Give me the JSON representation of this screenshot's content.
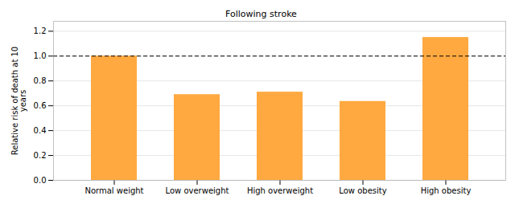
{
  "chart_data": {
    "type": "bar",
    "categories": [
      "Normal weight",
      "Low overweight",
      "High overweight",
      "Low obesity",
      "High obesity"
    ],
    "values": [
      1.0,
      0.69,
      0.71,
      0.635,
      1.15
    ],
    "color": "#FFA940",
    "ylabel": "Relative risk of death at 10\nyears",
    "annotation": "Following stroke",
    "reference_line": {
      "y": 1.0,
      "line_style": "dashed"
    },
    "ylim": [
      0,
      1.28
    ],
    "yticks": [
      {
        "value": 0,
        "label": "0.0"
      },
      0.2,
      0.4,
      0.6,
      0.8,
      {
        "value": 1,
        "label": "1.0"
      },
      1.2
    ],
    "grid": true
  }
}
